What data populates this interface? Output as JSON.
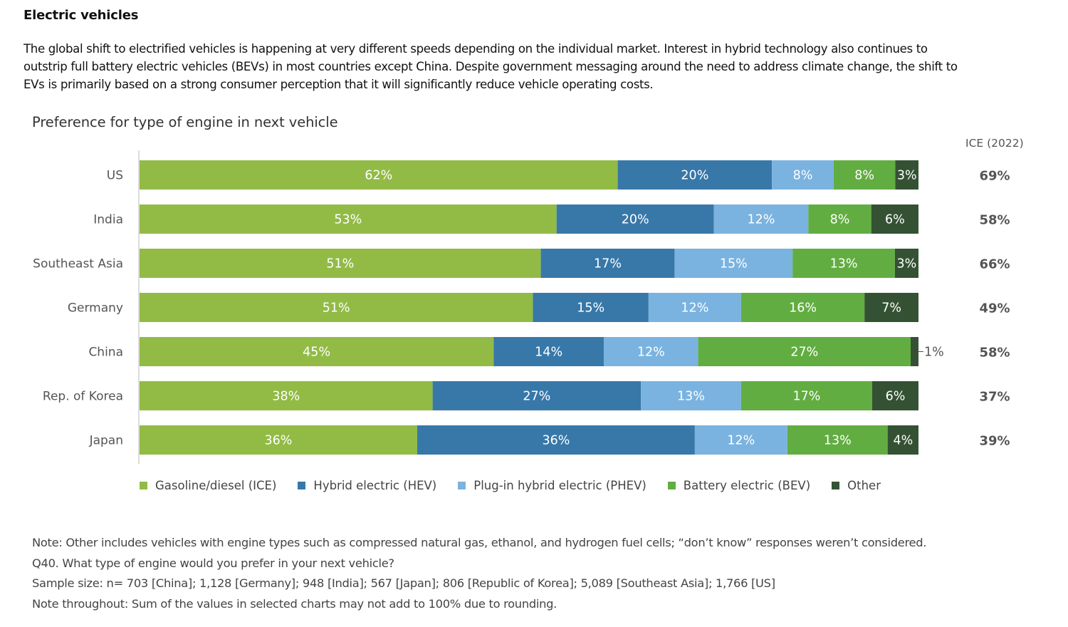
{
  "section_title": "Electric vehicles",
  "intro_lines": [
    "The global shift to electrified vehicles is happening at very different speeds depending on the individual market. Interest in hybrid technology also continues to",
    "outstrip full battery electric vehicles (BEVs) in most countries except China. Despite government messaging around the need to address climate change, the shift to",
    "EVs is primarily based on a strong consumer perception that it will significantly reduce vehicle operating costs."
  ],
  "notes": [
    "Note: Other includes vehicles with engine types such as compressed natural gas, ethanol, and hydrogen fuel cells; “don’t know” responses weren’t considered.",
    "Q40. What type of engine would you prefer in your next vehicle?",
    "Sample size: n= 703 [China]; 1,128 [Germany]; 948 [India]; 567 [Japan]; 806 [Republic of Korea]; 5,089 [Southeast Asia]; 1,766 [US]",
    "Note throughout: Sum of the values in selected charts may not add to 100% due to rounding."
  ],
  "chart_data": {
    "type": "bar",
    "orientation": "horizontal",
    "stacked": true,
    "title": "Preference for type of engine in next vehicle",
    "xlabel": "",
    "ylabel": "",
    "unit": "%",
    "categories": [
      "US",
      "India",
      "Southeast Asia",
      "Germany",
      "China",
      "Rep. of Korea",
      "Japan"
    ],
    "series": [
      {
        "name": "Gasoline/diesel (ICE)",
        "color": "#92bb46",
        "values": [
          62,
          53,
          51,
          51,
          45,
          38,
          36
        ]
      },
      {
        "name": "Hybrid electric (HEV)",
        "color": "#3878a9",
        "values": [
          20,
          20,
          17,
          15,
          14,
          27,
          36
        ]
      },
      {
        "name": "Plug-in hybrid electric (PHEV)",
        "color": "#7ab3e0",
        "values": [
          8,
          12,
          15,
          12,
          12,
          13,
          12
        ]
      },
      {
        "name": "Battery electric (BEV)",
        "color": "#62ad41",
        "values": [
          8,
          8,
          13,
          16,
          27,
          17,
          13
        ]
      },
      {
        "name": "Other",
        "color": "#345233",
        "values": [
          3,
          6,
          3,
          7,
          1,
          6,
          4
        ]
      }
    ],
    "side_column": {
      "header": "ICE (2022)",
      "values": [
        "69%",
        "58%",
        "66%",
        "49%",
        "58%",
        "37%",
        "39%"
      ]
    },
    "legend_position": "bottom",
    "grid": false
  }
}
